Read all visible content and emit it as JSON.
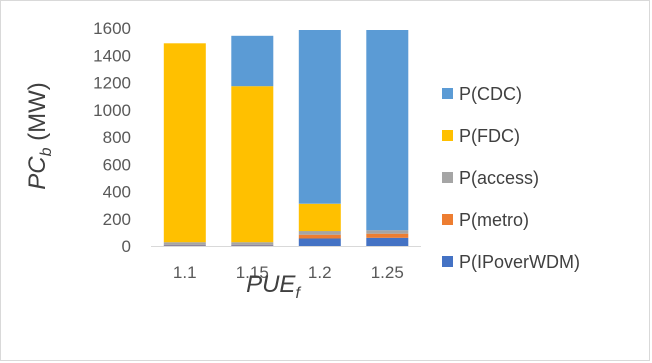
{
  "chart_data": {
    "type": "bar",
    "stacked": true,
    "categories": [
      "1.1",
      "1.15",
      "1.2",
      "1.25"
    ],
    "series": [
      {
        "name": "P(IPoverWDM)",
        "color": "#4472c4",
        "values": [
          5,
          5,
          55,
          60
        ]
      },
      {
        "name": "P(metro)",
        "color": "#ed7d31",
        "values": [
          3,
          3,
          28,
          30
        ]
      },
      {
        "name": "P(access)",
        "color": "#a5a5a5",
        "values": [
          20,
          20,
          27,
          25
        ]
      },
      {
        "name": "P(FDC)",
        "color": "#ffc000",
        "values": [
          1460,
          1145,
          200,
          0
        ]
      },
      {
        "name": "P(CDC)",
        "color": "#5b9bd5",
        "values": [
          0,
          370,
          1275,
          1470
        ]
      }
    ],
    "legend_order": [
      "P(CDC)",
      "P(FDC)",
      "P(access)",
      "P(metro)",
      "P(IPoverWDM)"
    ],
    "yticks": [
      "0",
      "200",
      "400",
      "600",
      "800",
      "1000",
      "1200",
      "1400",
      "1600"
    ],
    "ylim": [
      0,
      1600
    ],
    "ylabel": {
      "main": "PC",
      "sub": "b",
      "unit": " (MW)"
    },
    "xlabel": {
      "main": "PUE",
      "sub": "f"
    },
    "grid": false,
    "legend_position": "right"
  }
}
